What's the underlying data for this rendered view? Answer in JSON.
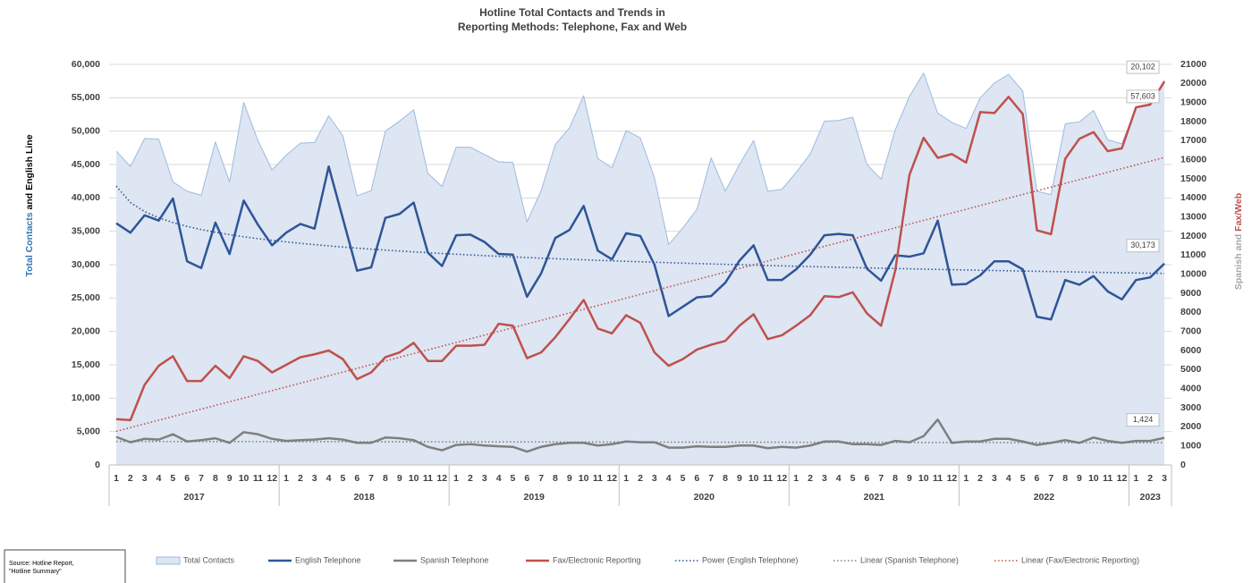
{
  "chart_data": {
    "type": "line",
    "title": [
      "Hotline Total Contacts and Trends in",
      "Reporting Methods: Telephone, Fax and Web"
    ],
    "y_label": [
      "Total Contacts",
      " and English Line"
    ],
    "y2_label": [
      "Spanish and ",
      "Fax/Web"
    ],
    "source": [
      "Source: Hotline Report,",
      "\"Hotline Summary\""
    ],
    "years": [
      "2017",
      "2018",
      "2019",
      "2020",
      "2021",
      "2022",
      "2023"
    ],
    "categories": [
      "1",
      "2",
      "3",
      "4",
      "5",
      "6",
      "7",
      "8",
      "9",
      "10",
      "11",
      "12",
      "1",
      "2",
      "3",
      "4",
      "5",
      "6",
      "7",
      "8",
      "9",
      "10",
      "11",
      "12",
      "1",
      "2",
      "3",
      "4",
      "5",
      "6",
      "7",
      "8",
      "9",
      "10",
      "11",
      "12",
      "1",
      "2",
      "3",
      "4",
      "5",
      "6",
      "7",
      "8",
      "9",
      "10",
      "11",
      "12",
      "1",
      "2",
      "3",
      "4",
      "5",
      "6",
      "7",
      "8",
      "9",
      "10",
      "11",
      "12",
      "1",
      "2",
      "3",
      "4",
      "5",
      "6",
      "7",
      "8",
      "9",
      "10",
      "11",
      "12",
      "1",
      "2",
      "3"
    ],
    "ylim": [
      0,
      60000
    ],
    "yticks": [
      {
        "value": 0,
        "label": "0"
      },
      {
        "value": 5000,
        "label": "5,000"
      },
      {
        "value": 10000,
        "label": "10,000"
      },
      {
        "value": 15000,
        "label": "15,000"
      },
      {
        "value": 20000,
        "label": "20,000"
      },
      {
        "value": 25000,
        "label": "25,000"
      },
      {
        "value": 30000,
        "label": "30,000"
      },
      {
        "value": 35000,
        "label": "35,000"
      },
      {
        "value": 40000,
        "label": "40,000"
      },
      {
        "value": 45000,
        "label": "45,000"
      },
      {
        "value": 50000,
        "label": "50,000"
      },
      {
        "value": 55000,
        "label": "55,000"
      },
      {
        "value": 60000,
        "label": "60,000"
      }
    ],
    "y2lim": [
      0,
      21000
    ],
    "y2ticks": [
      0,
      1000,
      2000,
      3000,
      4000,
      5000,
      6000,
      7000,
      8000,
      9000,
      10000,
      11000,
      12000,
      13000,
      14000,
      15000,
      16000,
      17000,
      18000,
      19000,
      20000,
      21000
    ],
    "grid": true,
    "series": [
      {
        "name": "Total Contacts",
        "type": "area",
        "color": "#9dbbe0",
        "fill": "#dde6f2",
        "values": [
          47000,
          44700,
          48900,
          48800,
          42400,
          41000,
          40400,
          48400,
          42400,
          54300,
          48600,
          44200,
          46400,
          48200,
          48300,
          52300,
          49300,
          40300,
          41100,
          50000,
          51500,
          53200,
          43700,
          41700,
          47600,
          47600,
          46500,
          45400,
          45300,
          36400,
          41100,
          48000,
          50500,
          55300,
          45900,
          44500,
          50100,
          49000,
          43000,
          33000,
          35500,
          38300,
          46000,
          41000,
          45000,
          48600,
          41000,
          41300,
          43800,
          46600,
          51500,
          51600,
          52100,
          45000,
          42800,
          50200,
          55200,
          58700,
          52700,
          51300,
          50400,
          55000,
          57200,
          58500,
          56000,
          41000,
          40500,
          51100,
          51400,
          53100,
          48700,
          48100,
          53500,
          53800,
          57603
        ],
        "value_labels": [
          null,
          null,
          null,
          null,
          null,
          null,
          null,
          null,
          null,
          null,
          null,
          null,
          null,
          null,
          null,
          null,
          null,
          null,
          null,
          null,
          null,
          null,
          null,
          null,
          null,
          null,
          null,
          null,
          null,
          null,
          null,
          null,
          null,
          null,
          null,
          null,
          null,
          null,
          null,
          null,
          null,
          null,
          null,
          null,
          null,
          null,
          null,
          null,
          null,
          null,
          null,
          null,
          null,
          null,
          null,
          null,
          null,
          null,
          null,
          null,
          null,
          null,
          null,
          null,
          null,
          null,
          null,
          null,
          null,
          null,
          null,
          null,
          null,
          null,
          "57,603"
        ]
      },
      {
        "name": "English Telephone",
        "color": "#2f5597",
        "values": [
          36200,
          34800,
          37400,
          36600,
          39900,
          30500,
          29500,
          36300,
          31600,
          39600,
          36000,
          32900,
          34800,
          36100,
          35400,
          44700,
          36900,
          29100,
          29600,
          37000,
          37600,
          39300,
          31800,
          29800,
          34400,
          34500,
          33400,
          31600,
          31500,
          25200,
          28700,
          34000,
          35200,
          38800,
          32100,
          30800,
          34700,
          34300,
          30000,
          22300,
          23700,
          25100,
          25300,
          27300,
          30600,
          32900,
          27700,
          27700,
          29300,
          31500,
          34400,
          34600,
          34400,
          29400,
          27600,
          31400,
          31200,
          31700,
          36600,
          27000,
          27100,
          28400,
          30500,
          30500,
          29300,
          22200,
          21800,
          27700,
          27000,
          28300,
          26000,
          24800,
          27700,
          28100,
          30173
        ],
        "value_labels": [
          null,
          null,
          null,
          null,
          null,
          null,
          null,
          null,
          null,
          null,
          null,
          null,
          null,
          null,
          null,
          null,
          null,
          null,
          null,
          null,
          null,
          null,
          null,
          null,
          null,
          null,
          null,
          null,
          null,
          null,
          null,
          null,
          null,
          null,
          null,
          null,
          null,
          null,
          null,
          null,
          null,
          null,
          null,
          null,
          null,
          null,
          null,
          null,
          null,
          null,
          null,
          null,
          null,
          null,
          null,
          null,
          null,
          null,
          null,
          null,
          null,
          null,
          null,
          null,
          null,
          null,
          null,
          null,
          null,
          null,
          null,
          null,
          null,
          null,
          "30,173"
        ]
      },
      {
        "name": "Spanish Telephone",
        "color": "#7f7f7f",
        "axis": "y2",
        "values": [
          1470,
          1190,
          1370,
          1330,
          1610,
          1230,
          1300,
          1400,
          1160,
          1720,
          1610,
          1370,
          1260,
          1300,
          1330,
          1400,
          1330,
          1160,
          1160,
          1440,
          1400,
          1300,
          950,
          770,
          1050,
          1090,
          1020,
          980,
          950,
          700,
          950,
          1090,
          1160,
          1160,
          1020,
          1090,
          1230,
          1190,
          1190,
          910,
          910,
          980,
          950,
          950,
          1020,
          1020,
          880,
          950,
          910,
          1020,
          1230,
          1230,
          1090,
          1090,
          1050,
          1260,
          1190,
          1510,
          2380,
          1160,
          1230,
          1230,
          1370,
          1370,
          1230,
          1050,
          1160,
          1300,
          1160,
          1440,
          1260,
          1160,
          1260,
          1260,
          1424
        ],
        "value_labels": [
          null,
          null,
          null,
          null,
          null,
          null,
          null,
          null,
          null,
          null,
          null,
          null,
          null,
          null,
          null,
          null,
          null,
          null,
          null,
          null,
          null,
          null,
          null,
          null,
          null,
          null,
          null,
          null,
          null,
          null,
          null,
          null,
          null,
          null,
          null,
          null,
          null,
          null,
          null,
          null,
          null,
          null,
          null,
          null,
          null,
          null,
          null,
          null,
          null,
          null,
          null,
          null,
          null,
          null,
          null,
          null,
          null,
          null,
          null,
          null,
          null,
          null,
          null,
          null,
          null,
          null,
          null,
          null,
          null,
          null,
          null,
          null,
          null,
          null,
          "1,424"
        ]
      },
      {
        "name": "Fax/Electronic Reporting",
        "color": "#c0504d",
        "axis": "y2",
        "values": [
          2400,
          2350,
          4200,
          5200,
          5700,
          4400,
          4400,
          5200,
          4550,
          5700,
          5450,
          4850,
          5250,
          5650,
          5800,
          6000,
          5550,
          4500,
          4850,
          5650,
          5900,
          6400,
          5450,
          5450,
          6250,
          6250,
          6300,
          7400,
          7300,
          5600,
          5900,
          6700,
          7650,
          8650,
          7150,
          6900,
          7850,
          7450,
          5900,
          5200,
          5550,
          6050,
          6300,
          6500,
          7300,
          7900,
          6600,
          6800,
          7300,
          7850,
          8850,
          8800,
          9050,
          7950,
          7300,
          10200,
          15200,
          17150,
          16100,
          16300,
          15850,
          18500,
          18450,
          19300,
          18400,
          12300,
          12100,
          16050,
          17100,
          17450,
          16450,
          16600,
          18750,
          18900,
          20102
        ],
        "value_labels": [
          null,
          null,
          null,
          null,
          null,
          null,
          null,
          null,
          null,
          null,
          null,
          null,
          null,
          null,
          null,
          null,
          null,
          null,
          null,
          null,
          null,
          null,
          null,
          null,
          null,
          null,
          null,
          null,
          null,
          null,
          null,
          null,
          null,
          null,
          null,
          null,
          null,
          null,
          null,
          null,
          null,
          null,
          null,
          null,
          null,
          null,
          null,
          null,
          null,
          null,
          null,
          null,
          null,
          null,
          null,
          null,
          null,
          null,
          null,
          null,
          null,
          null,
          null,
          null,
          null,
          null,
          null,
          null,
          null,
          null,
          null,
          null,
          null,
          null,
          "20,102"
        ]
      }
    ],
    "trendlines": [
      {
        "name": "Power (English Telephone)",
        "of": "English Telephone",
        "kind": "power",
        "color": "#2f5597"
      },
      {
        "name": "Linear (Spanish Telephone)",
        "of": "Spanish Telephone",
        "kind": "linear",
        "color": "#7f7f7f"
      },
      {
        "name": "Linear (Fax/Electronic Reporting)",
        "of": "Fax/Electronic Reporting",
        "kind": "linear",
        "color": "#c0504d"
      }
    ]
  }
}
